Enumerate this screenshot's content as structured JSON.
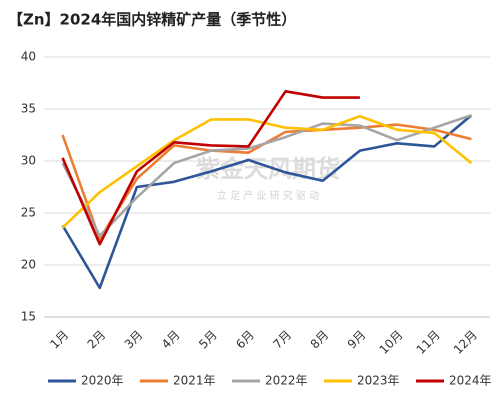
{
  "chart_data": {
    "type": "line",
    "title": "【Zn】2024年国内锌精矿产量（季节性）",
    "watermark": "紫金天风期货",
    "watermark_subtitle": "立 足 产 业 研 究 驱 动",
    "categories": [
      "1月",
      "2月",
      "3月",
      "4月",
      "5月",
      "6月",
      "7月",
      "8月",
      "9月",
      "10月",
      "11月",
      "12月"
    ],
    "series": [
      {
        "name": "2020年",
        "color": "#2e5597",
        "values": [
          23.8,
          17.8,
          27.5,
          28.0,
          29.0,
          30.1,
          28.9,
          28.1,
          31.0,
          31.7,
          31.4,
          34.4
        ]
      },
      {
        "name": "2021年",
        "color": "#ed7d31",
        "values": [
          32.5,
          22.5,
          28.3,
          31.5,
          31.0,
          30.8,
          32.8,
          33.0,
          33.2,
          33.5,
          33.0,
          32.1
        ]
      },
      {
        "name": "2022年",
        "color": "#a5a5a5",
        "values": [
          29.8,
          22.8,
          26.5,
          29.8,
          31.0,
          31.2,
          32.3,
          33.6,
          33.4,
          32.0,
          33.2,
          34.4
        ]
      },
      {
        "name": "2023年",
        "color": "#ffc000",
        "values": [
          23.6,
          27.0,
          29.5,
          32.0,
          34.0,
          34.0,
          33.2,
          33.0,
          34.3,
          33.0,
          32.7,
          29.8
        ]
      },
      {
        "name": "2024年",
        "color": "#c00000",
        "values": [
          30.3,
          22.0,
          29.0,
          31.8,
          31.5,
          31.4,
          36.7,
          36.1,
          36.1,
          null,
          null,
          null
        ]
      }
    ],
    "ylim": [
      15,
      40
    ],
    "yticks": [
      15,
      20,
      25,
      30,
      35,
      40
    ],
    "grid": true
  }
}
